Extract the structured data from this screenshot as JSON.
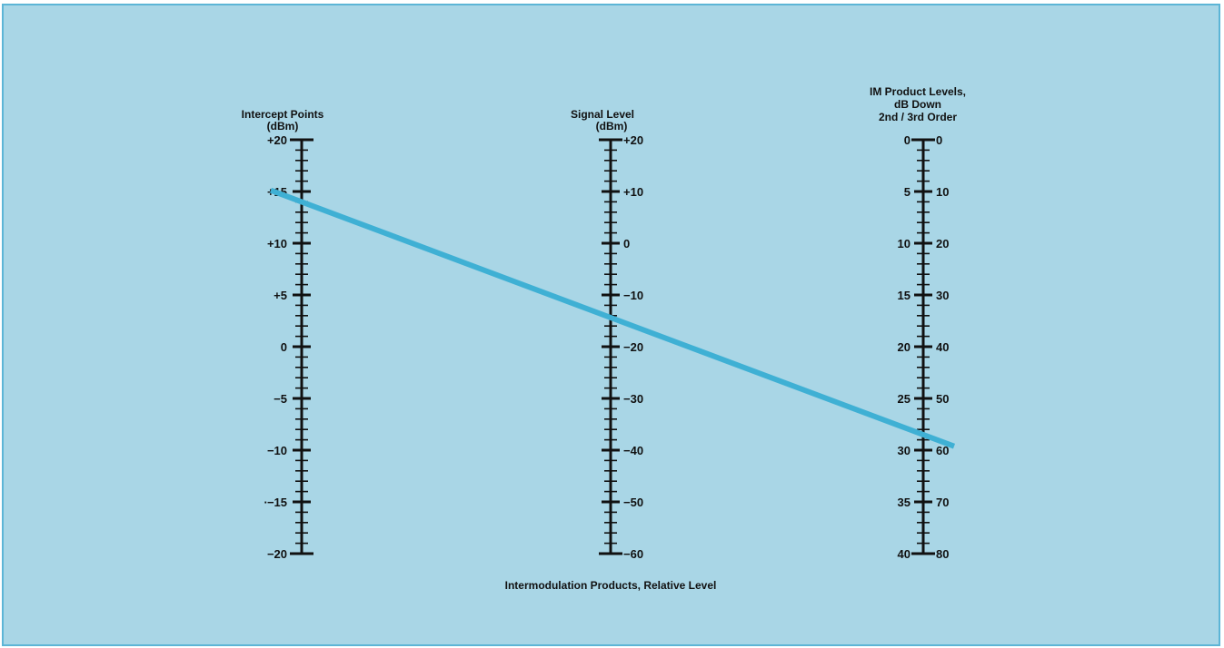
{
  "nomogram": {
    "caption": "Intermodulation Products, Relative Level",
    "scales": {
      "intercept": {
        "title_lines": [
          "Intercept Points",
          "(dBm)"
        ],
        "min": -20,
        "max": 20,
        "minor_step": 1,
        "labels": [
          "+20",
          "+15",
          "+10",
          "+5",
          "0",
          "−5",
          "−10",
          "∙−15",
          "−20"
        ],
        "label_values": [
          20,
          15,
          10,
          5,
          0,
          -5,
          -10,
          -15,
          -20
        ]
      },
      "signal": {
        "title_lines": [
          "Signal Level",
          "(dBm)"
        ],
        "min": -60,
        "max": 20,
        "minor_step": 2,
        "labels": [
          "+20",
          "+10",
          "0",
          "−10",
          "−20",
          "−30",
          "−40",
          "−50",
          "−60"
        ],
        "label_values": [
          20,
          10,
          0,
          -10,
          -20,
          -30,
          -40,
          -50,
          -60
        ]
      },
      "im": {
        "title_lines": [
          "IM Product Levels,",
          "dB Down",
          "2nd / 3rd Order"
        ],
        "min": 0,
        "max": 40,
        "minor_step": 1,
        "labels_2nd": [
          "0",
          "5",
          "10",
          "15",
          "20",
          "25",
          "30",
          "35",
          "40"
        ],
        "labels_3rd": [
          "0",
          "10",
          "20",
          "30",
          "40",
          "50",
          "60",
          "70",
          "80"
        ],
        "label_values": [
          0,
          5,
          10,
          15,
          20,
          25,
          30,
          35,
          40
        ]
      }
    },
    "example_line": {
      "color": "#3fb0d4",
      "intercept_dbm": 14,
      "im_2nd_order_db": 28.5
    },
    "colors": {
      "background": "#a9d6e6",
      "border": "#5cb5d6",
      "ink": "#111111"
    }
  }
}
